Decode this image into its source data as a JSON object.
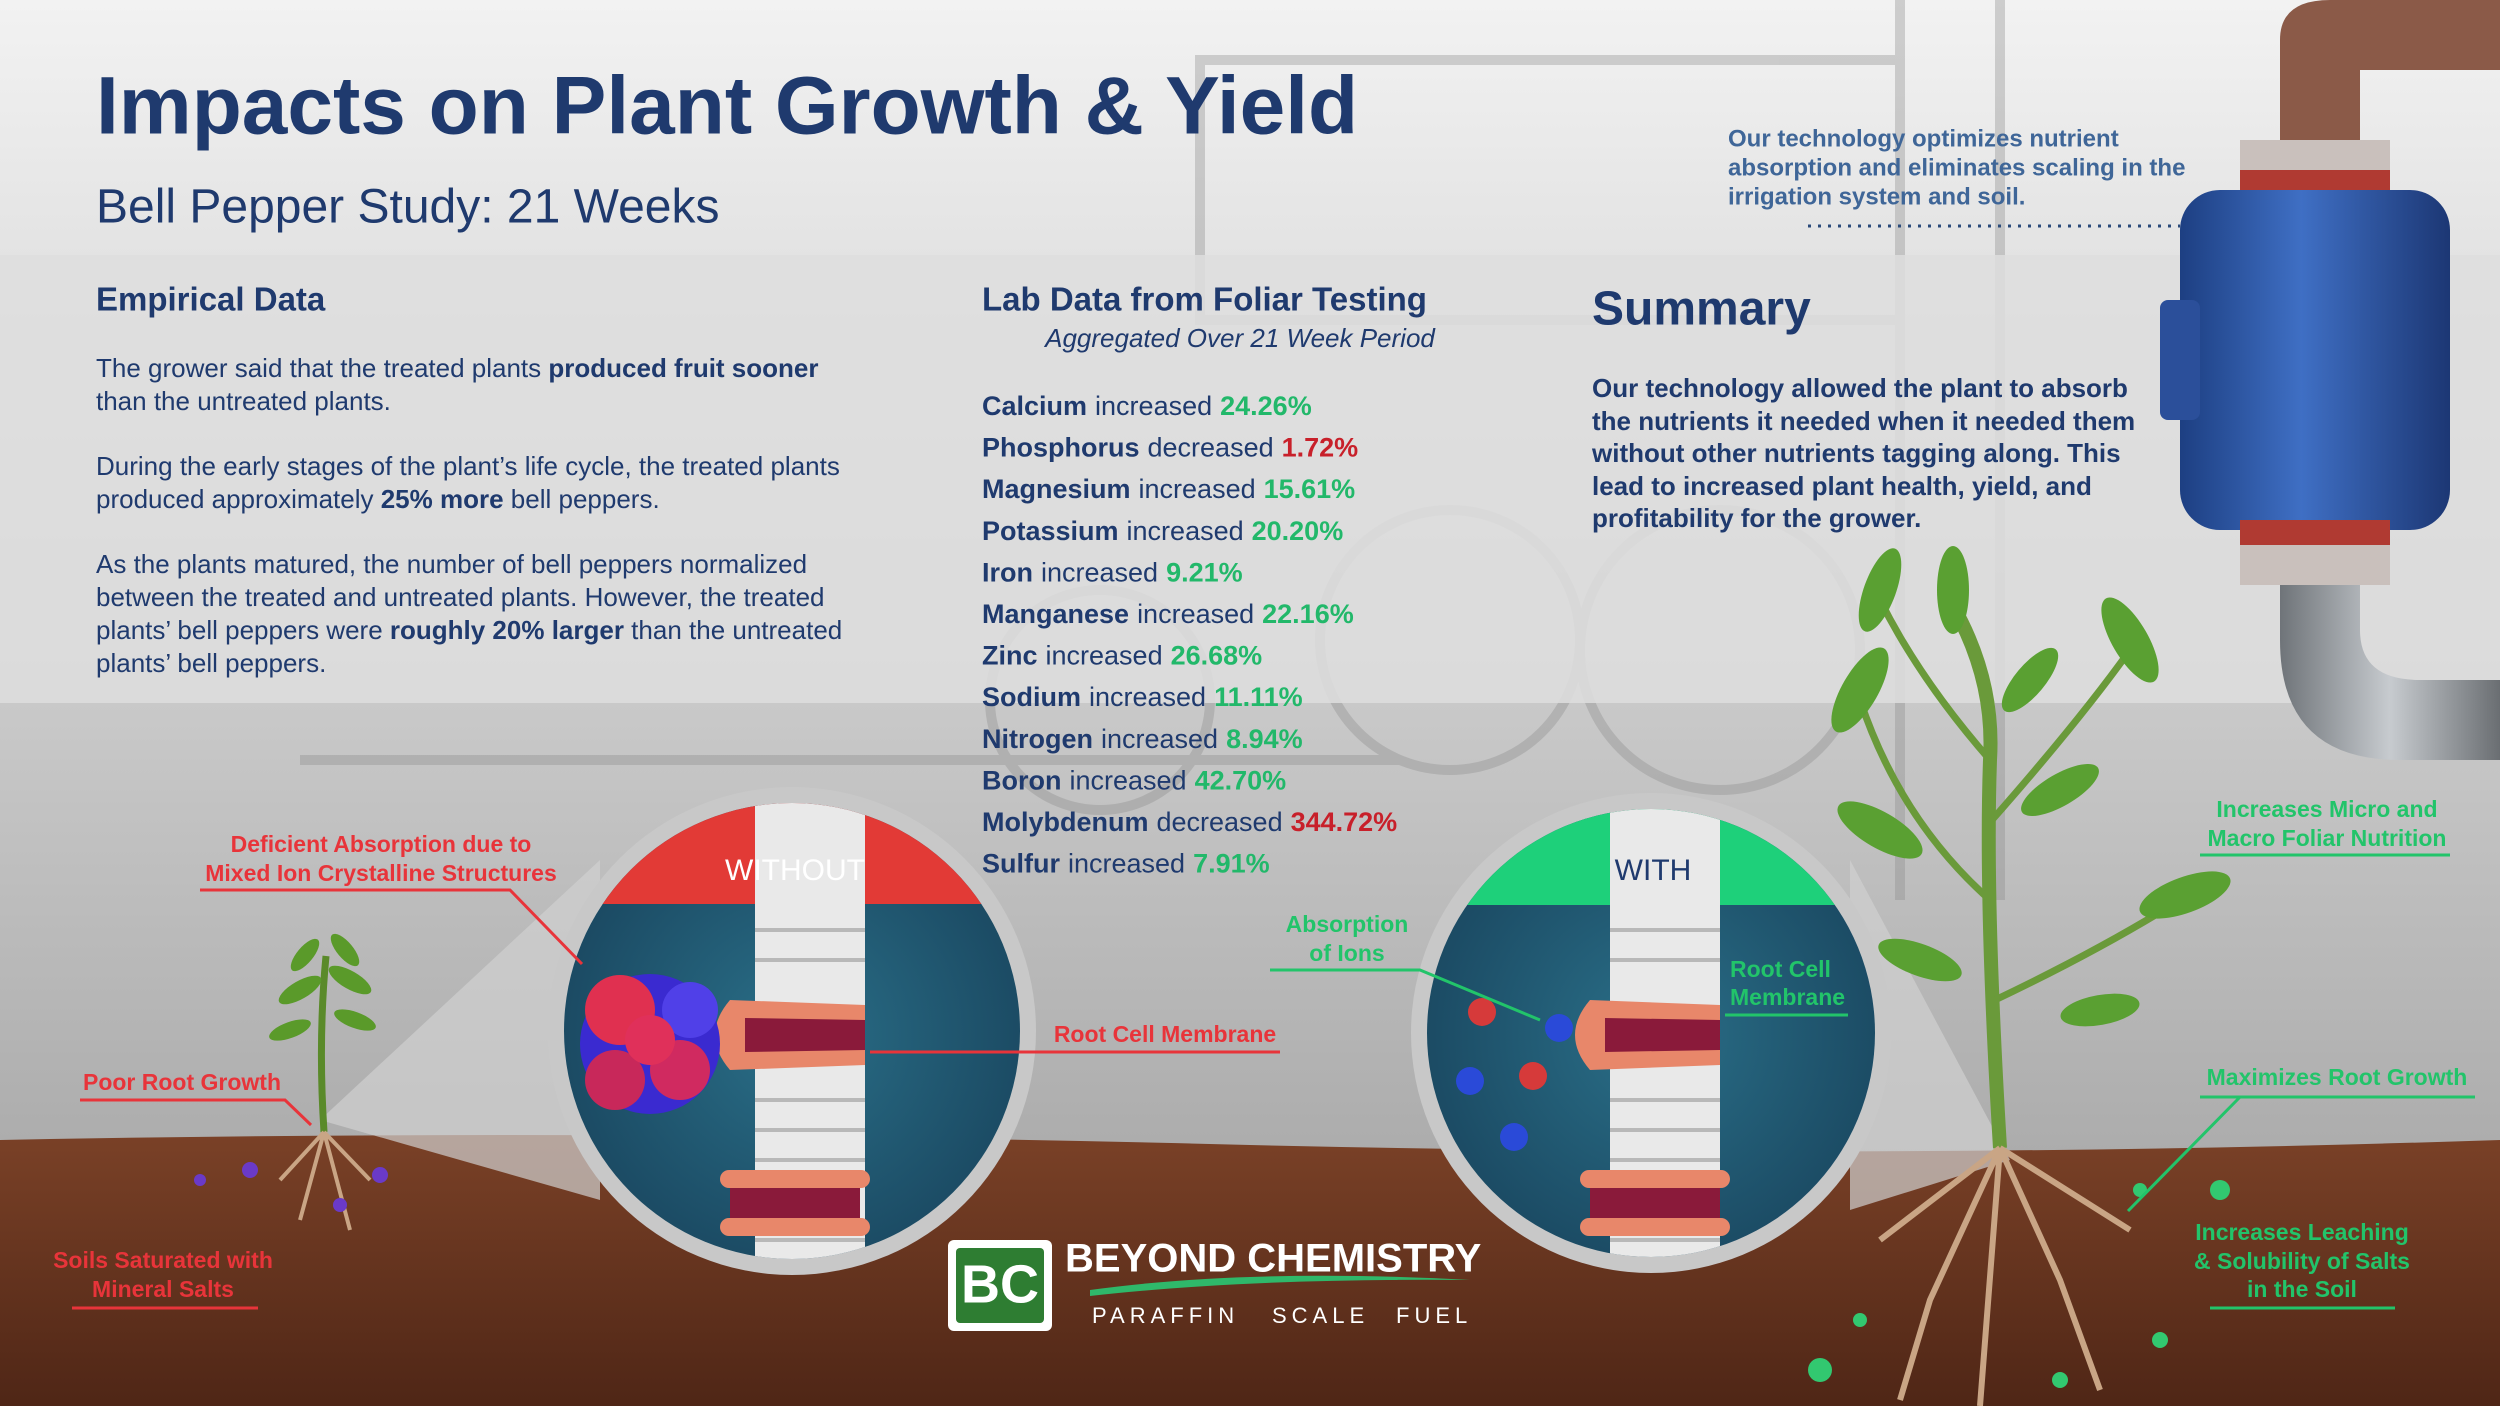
{
  "header": {
    "title": "Impacts on Plant Growth & Yield",
    "subtitle": "Bell Pepper Study: 21 Weeks"
  },
  "tagline": [
    "Our technology optimizes nutrient",
    "absorption and eliminates scaling in the",
    "irrigation system and soil."
  ],
  "empirical": {
    "heading": "Empirical Data",
    "paragraphs": [
      [
        {
          "text": "The grower said that the treated plants ",
          "bold": false
        },
        {
          "text": "produced fruit sooner",
          "bold": true
        },
        {
          "text": " than the untreated plants.",
          "bold": false
        }
      ],
      [
        {
          "text": "During the early stages of the plant’s life cycle, the treated plants produced approximately ",
          "bold": false
        },
        {
          "text": "25% more",
          "bold": true
        },
        {
          "text": " bell peppers.",
          "bold": false
        }
      ],
      [
        {
          "text": "As the plants matured, the number of bell peppers normalized between the treated and untreated plants. However, the treated plants’ bell peppers were ",
          "bold": false
        },
        {
          "text": "roughly 20% larger",
          "bold": true
        },
        {
          "text": " than the untreated plants’ bell peppers.",
          "bold": false
        }
      ]
    ]
  },
  "lab": {
    "heading": "Lab Data from Foliar Testing",
    "subheading": "Aggregated Over 21 Week Period",
    "rows": [
      {
        "nutrient": "Calcium",
        "change": "increased",
        "amount": "24.26%",
        "color": "#22b86a"
      },
      {
        "nutrient": "Phosphorus",
        "change": "decreased",
        "amount": "1.72%",
        "color": "#c8202a"
      },
      {
        "nutrient": "Magnesium",
        "change": "increased",
        "amount": "15.61%",
        "color": "#22b86a"
      },
      {
        "nutrient": "Potassium",
        "change": "increased",
        "amount": "20.20%",
        "color": "#22b86a"
      },
      {
        "nutrient": "Iron",
        "change": "increased",
        "amount": "9.21%",
        "color": "#22b86a"
      },
      {
        "nutrient": "Manganese",
        "change": "increased",
        "amount": "22.16%",
        "color": "#22b86a"
      },
      {
        "nutrient": "Zinc",
        "change": "increased",
        "amount": "26.68%",
        "color": "#22b86a"
      },
      {
        "nutrient": "Sodium",
        "change": "increased",
        "amount": "11.11%",
        "color": "#22b86a"
      },
      {
        "nutrient": "Nitrogen",
        "change": "increased",
        "amount": "8.94%",
        "color": "#22b86a"
      },
      {
        "nutrient": "Boron",
        "change": "increased",
        "amount": "42.70%",
        "color": "#22b86a"
      },
      {
        "nutrient": "Molybdenum",
        "change": "decreased",
        "amount": "344.72%",
        "color": "#c8202a"
      },
      {
        "nutrient": "Sulfur",
        "change": "increased",
        "amount": "7.91%",
        "color": "#22b86a"
      }
    ]
  },
  "summary": {
    "heading": "Summary",
    "text": "Our technology allowed the plant to absorb the nutrients it needed when it needed them without other nutrients tagging along. This lead to increased plant health, yield, and profitability for the grower."
  },
  "diagram": {
    "without": {
      "banner": "WITHOUT",
      "deficient": [
        "Deficient Absorption due to",
        "Mixed Ion Crystalline Structures"
      ],
      "membrane": "Root Cell Membrane",
      "roots": "Poor Root Growth",
      "soil": [
        "Soils Saturated with",
        "Mineral Salts"
      ]
    },
    "with": {
      "banner": "WITH",
      "absorption": [
        "Absorption",
        "of Ions"
      ],
      "membrane": [
        "Root Cell",
        "Membrane"
      ],
      "foliar": [
        "Increases Micro and",
        "Macro Foliar Nutrition"
      ],
      "roots": "Maximizes Root Growth",
      "leaching": [
        "Increases Leaching",
        "& Solubility of Salts",
        "in the Soil"
      ]
    }
  },
  "logo": {
    "mark": "BC",
    "name": "BEYOND CHEMISTRY",
    "products": [
      "PARAFFIN",
      "SCALE",
      "FUEL"
    ]
  }
}
